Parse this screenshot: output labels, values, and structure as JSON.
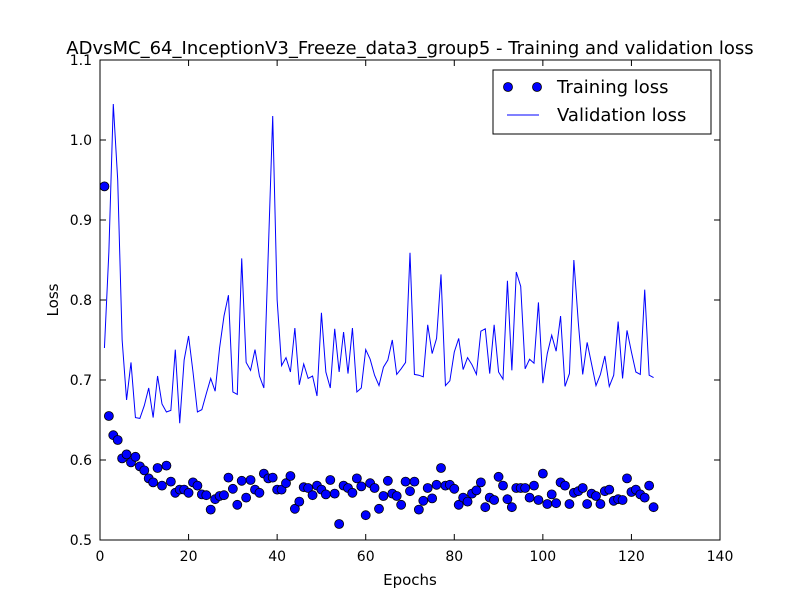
{
  "chart_data": {
    "type": "scatter",
    "title": "ADvsMC_64_InceptionV3_Freeze_data3_group5 - Training and validation loss",
    "xlabel": "Epochs",
    "ylabel": "Loss",
    "xlim": [
      0,
      140
    ],
    "ylim": [
      0.5,
      1.1
    ],
    "xticks": [
      0,
      20,
      40,
      60,
      80,
      100,
      120,
      140
    ],
    "xtick_labels": [
      "0",
      "20",
      "40",
      "60",
      "80",
      "100",
      "120",
      "140"
    ],
    "yticks": [
      0.5,
      0.6,
      0.7,
      0.8,
      0.9,
      1.0,
      1.1
    ],
    "ytick_labels": [
      "0.5",
      "0.6",
      "0.7",
      "0.8",
      "0.9",
      "1.0",
      "1.1"
    ],
    "grid": false,
    "legend_position": "top-right",
    "colors": {
      "series": "#0000ff",
      "axes": "#000000"
    },
    "series": [
      {
        "name": "Training loss",
        "style": "markers",
        "x": [
          1,
          2,
          3,
          4,
          5,
          6,
          7,
          8,
          9,
          10,
          11,
          12,
          13,
          14,
          15,
          16,
          17,
          18,
          19,
          20,
          21,
          22,
          23,
          24,
          25,
          26,
          27,
          28,
          29,
          30,
          31,
          32,
          33,
          34,
          35,
          36,
          37,
          38,
          39,
          40,
          41,
          42,
          43,
          44,
          45,
          46,
          47,
          48,
          49,
          50,
          51,
          52,
          53,
          54,
          55,
          56,
          57,
          58,
          59,
          60,
          61,
          62,
          63,
          64,
          65,
          66,
          67,
          68,
          69,
          70,
          71,
          72,
          73,
          74,
          75,
          76,
          77,
          78,
          79,
          80,
          81,
          82,
          83,
          84,
          85,
          86,
          87,
          88,
          89,
          90,
          91,
          92,
          93,
          94,
          95,
          96,
          97,
          98,
          99,
          100,
          101,
          102,
          103,
          104,
          105,
          106,
          107,
          108,
          109,
          110,
          111,
          112,
          113,
          114,
          115,
          116,
          117,
          118,
          119,
          120,
          121,
          122,
          123,
          124,
          125
        ],
        "y": [
          0.942,
          0.655,
          0.631,
          0.625,
          0.602,
          0.607,
          0.597,
          0.604,
          0.592,
          0.587,
          0.577,
          0.572,
          0.59,
          0.568,
          0.593,
          0.573,
          0.559,
          0.563,
          0.563,
          0.559,
          0.572,
          0.568,
          0.557,
          0.556,
          0.538,
          0.551,
          0.555,
          0.556,
          0.578,
          0.564,
          0.544,
          0.574,
          0.553,
          0.575,
          0.563,
          0.559,
          0.583,
          0.577,
          0.578,
          0.563,
          0.563,
          0.571,
          0.58,
          0.539,
          0.548,
          0.566,
          0.565,
          0.556,
          0.568,
          0.563,
          0.557,
          0.575,
          0.558,
          0.52,
          0.568,
          0.565,
          0.559,
          0.577,
          0.567,
          0.531,
          0.571,
          0.565,
          0.539,
          0.555,
          0.574,
          0.558,
          0.555,
          0.544,
          0.573,
          0.561,
          0.573,
          0.538,
          0.549,
          0.565,
          0.552,
          0.569,
          0.59,
          0.568,
          0.569,
          0.564,
          0.544,
          0.553,
          0.548,
          0.558,
          0.562,
          0.572,
          0.541,
          0.553,
          0.55,
          0.579,
          0.568,
          0.551,
          0.541,
          0.565,
          0.565,
          0.565,
          0.553,
          0.568,
          0.55,
          0.583,
          0.545,
          0.557,
          0.546,
          0.572,
          0.568,
          0.545,
          0.559,
          0.561,
          0.565,
          0.545,
          0.558,
          0.555,
          0.545,
          0.561,
          0.563,
          0.549,
          0.551,
          0.55,
          0.577,
          0.56,
          0.563,
          0.557,
          0.553,
          0.568,
          0.541
        ]
      },
      {
        "name": "Validation loss",
        "style": "line",
        "x": [
          1,
          2,
          3,
          4,
          5,
          6,
          7,
          8,
          9,
          10,
          11,
          12,
          13,
          14,
          15,
          16,
          17,
          18,
          19,
          20,
          21,
          22,
          23,
          24,
          25,
          26,
          27,
          28,
          29,
          30,
          31,
          32,
          33,
          34,
          35,
          36,
          37,
          38,
          39,
          40,
          41,
          42,
          43,
          44,
          45,
          46,
          47,
          48,
          49,
          50,
          51,
          52,
          53,
          54,
          55,
          56,
          57,
          58,
          59,
          60,
          61,
          62,
          63,
          64,
          65,
          66,
          67,
          68,
          69,
          70,
          71,
          72,
          73,
          74,
          75,
          76,
          77,
          78,
          79,
          80,
          81,
          82,
          83,
          84,
          85,
          86,
          87,
          88,
          89,
          90,
          91,
          92,
          93,
          94,
          95,
          96,
          97,
          98,
          99,
          100,
          101,
          102,
          103,
          104,
          105,
          106,
          107,
          108,
          109,
          110,
          111,
          112,
          113,
          114,
          115,
          116,
          117,
          118,
          119,
          120,
          121,
          122,
          123,
          124,
          125
        ],
        "y": [
          0.74,
          0.86,
          1.045,
          0.95,
          0.75,
          0.675,
          0.722,
          0.653,
          0.652,
          0.668,
          0.69,
          0.653,
          0.705,
          0.67,
          0.66,
          0.662,
          0.738,
          0.646,
          0.725,
          0.755,
          0.71,
          0.66,
          0.663,
          0.683,
          0.702,
          0.686,
          0.74,
          0.78,
          0.806,
          0.685,
          0.682,
          0.852,
          0.722,
          0.712,
          0.738,
          0.705,
          0.69,
          0.86,
          1.03,
          0.8,
          0.718,
          0.728,
          0.71,
          0.765,
          0.694,
          0.72,
          0.702,
          0.705,
          0.68,
          0.784,
          0.71,
          0.69,
          0.764,
          0.71,
          0.76,
          0.708,
          0.765,
          0.685,
          0.69,
          0.738,
          0.726,
          0.706,
          0.693,
          0.716,
          0.725,
          0.75,
          0.707,
          0.714,
          0.722,
          0.859,
          0.707,
          0.706,
          0.704,
          0.769,
          0.733,
          0.752,
          0.832,
          0.693,
          0.699,
          0.735,
          0.752,
          0.713,
          0.728,
          0.719,
          0.707,
          0.761,
          0.764,
          0.708,
          0.769,
          0.71,
          0.701,
          0.824,
          0.712,
          0.835,
          0.817,
          0.714,
          0.726,
          0.721,
          0.797,
          0.696,
          0.733,
          0.756,
          0.736,
          0.78,
          0.692,
          0.708,
          0.85,
          0.772,
          0.707,
          0.747,
          0.72,
          0.693,
          0.707,
          0.73,
          0.692,
          0.706,
          0.773,
          0.702,
          0.762,
          0.735,
          0.71,
          0.707,
          0.813,
          0.706,
          0.703
        ]
      }
    ]
  }
}
